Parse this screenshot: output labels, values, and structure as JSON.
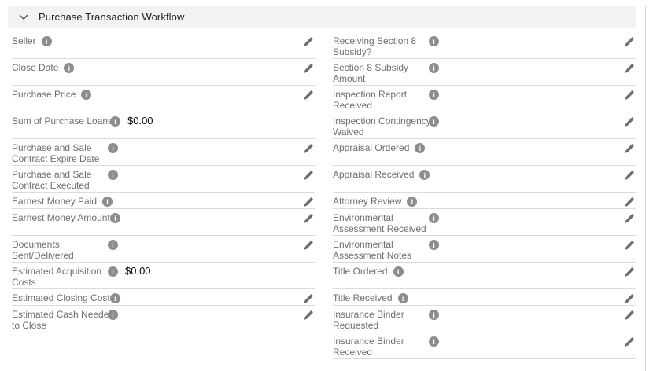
{
  "section": {
    "title": "Purchase Transaction Workflow",
    "expanded": true
  },
  "icons": {
    "collapse_icon": "chevron-down",
    "help_icon": "info-circle-filled",
    "edit_icon": "pencil"
  },
  "colors": {
    "header_background": "#f3f2f2",
    "header_text": "#232323",
    "label_text": "#716e6a",
    "value_text": "#080707",
    "row_border": "#dddbda",
    "info_icon_fill": "#8e8d8a",
    "pencil_fill": "#6f6e6c",
    "card_border": "#d8d8d8"
  },
  "rows": [
    {
      "left": {
        "label": "Seller",
        "label_lines": [
          "Seller"
        ],
        "value": "",
        "has_info": true,
        "editable": true
      },
      "right": {
        "label": "Receiving Section 8 Subsidy?",
        "label_lines": [
          "Receiving Section 8",
          "Subsidy?"
        ],
        "value": "",
        "has_info": true,
        "editable": true
      }
    },
    {
      "left": {
        "label": "Close Date",
        "label_lines": [
          "Close Date"
        ],
        "value": "",
        "has_info": true,
        "editable": true
      },
      "right": {
        "label": "Section 8 Subsidy Amount",
        "label_lines": [
          "Section 8 Subsidy",
          "Amount"
        ],
        "value": "",
        "has_info": true,
        "editable": true
      }
    },
    {
      "left": {
        "label": "Purchase Price",
        "label_lines": [
          "Purchase Price"
        ],
        "value": "",
        "has_info": true,
        "editable": true
      },
      "right": {
        "label": "Inspection Report Received",
        "label_lines": [
          "Inspection Report",
          "Received"
        ],
        "value": "",
        "has_info": true,
        "editable": true
      }
    },
    {
      "left": {
        "label": "Sum of Purchase Loans",
        "label_lines": [
          "Sum of Purchase Loans"
        ],
        "value": "$0.00",
        "has_info": true,
        "editable": false
      },
      "right": {
        "label": "Inspection Contingency Waived",
        "label_lines": [
          "Inspection Contingency",
          "Waived"
        ],
        "value": "",
        "has_info": true,
        "editable": true
      }
    },
    {
      "left": {
        "label": "Purchase and Sale Contract Expire Date",
        "label_lines": [
          "Purchase and Sale",
          "Contract Expire Date"
        ],
        "value": "",
        "has_info": true,
        "editable": true
      },
      "right": {
        "label": "Appraisal Ordered",
        "label_lines": [
          "Appraisal Ordered"
        ],
        "value": "",
        "has_info": true,
        "editable": true
      }
    },
    {
      "left": {
        "label": "Purchase and Sale Contract Executed",
        "label_lines": [
          "Purchase and Sale",
          "Contract Executed"
        ],
        "value": "",
        "has_info": true,
        "editable": true
      },
      "right": {
        "label": "Appraisal Received",
        "label_lines": [
          "Appraisal Received"
        ],
        "value": "",
        "has_info": true,
        "editable": true
      }
    },
    {
      "left": {
        "label": "Earnest Money Paid",
        "label_lines": [
          "Earnest Money Paid"
        ],
        "value": "",
        "has_info": true,
        "editable": true
      },
      "right": {
        "label": "Attorney Review",
        "label_lines": [
          "Attorney Review"
        ],
        "value": "",
        "has_info": true,
        "editable": true
      }
    },
    {
      "left": {
        "label": "Earnest Money Amount",
        "label_lines": [
          "Earnest Money Amount"
        ],
        "value": "",
        "has_info": true,
        "editable": true
      },
      "right": {
        "label": "Environmental Assessment Received",
        "label_lines": [
          "Environmental",
          "Assessment Received"
        ],
        "value": "",
        "has_info": true,
        "editable": true
      }
    },
    {
      "left": {
        "label": "Documents Sent/Delivered",
        "label_lines": [
          "Documents",
          "Sent/Delivered"
        ],
        "value": "",
        "has_info": true,
        "editable": true
      },
      "right": {
        "label": "Environmental Assessment Notes",
        "label_lines": [
          "Environmental",
          "Assessment Notes"
        ],
        "value": "",
        "has_info": true,
        "editable": true
      }
    },
    {
      "left": {
        "label": "Estimated Acquisition Costs",
        "label_lines": [
          "Estimated Acquisition",
          "Costs"
        ],
        "value": "$0.00",
        "has_info": true,
        "editable": false
      },
      "right": {
        "label": "Title Ordered",
        "label_lines": [
          "Title Ordered"
        ],
        "value": "",
        "has_info": true,
        "editable": true
      }
    },
    {
      "left": {
        "label": "Estimated Closing Costs",
        "label_lines": [
          "Estimated Closing Costs"
        ],
        "value": "",
        "has_info": true,
        "editable": true
      },
      "right": {
        "label": "Title Received",
        "label_lines": [
          "Title Received"
        ],
        "value": "",
        "has_info": true,
        "editable": true
      }
    },
    {
      "left": {
        "label": "Estimated Cash Needed to Close",
        "label_lines": [
          "Estimated Cash Needed",
          "to Close"
        ],
        "value": "",
        "has_info": true,
        "editable": true
      },
      "right": {
        "label": "Insurance Binder Requested",
        "label_lines": [
          "Insurance Binder",
          "Requested"
        ],
        "value": "",
        "has_info": true,
        "editable": true
      }
    },
    {
      "left": null,
      "right": {
        "label": "Insurance Binder Received",
        "label_lines": [
          "Insurance Binder",
          "Received"
        ],
        "value": "",
        "has_info": true,
        "editable": true
      }
    }
  ]
}
